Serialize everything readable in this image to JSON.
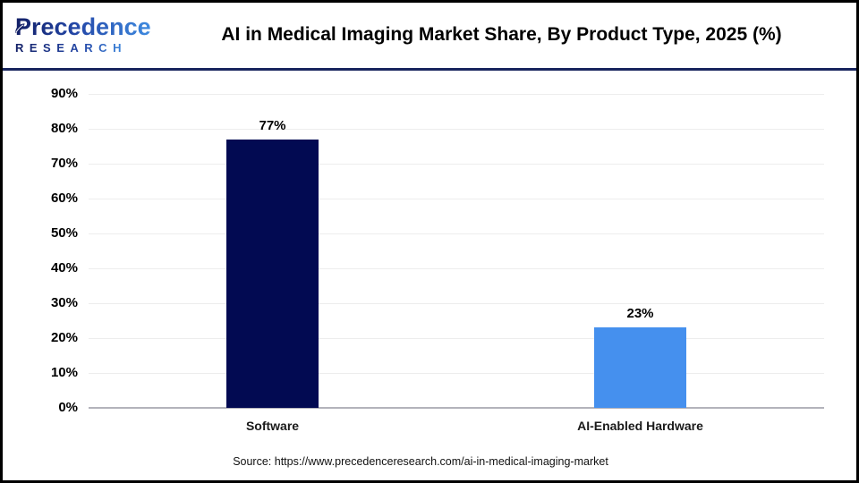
{
  "header": {
    "title": "AI in Medical Imaging Market Share, By Product Type, 2025 (%)"
  },
  "logo": {
    "name": "Precedence",
    "subname": "RESEARCH",
    "color_dark": "#121f66",
    "color_light": "#3f8be0"
  },
  "chart_data": {
    "type": "bar",
    "title": "AI in Medical Imaging Market Share, By Product Type, 2025 (%)",
    "categories": [
      "Software",
      "AI-Enabled Hardware"
    ],
    "values": [
      77,
      23
    ],
    "value_labels": [
      "77%",
      "23%"
    ],
    "bar_colors": [
      "#020a52",
      "#4590ee"
    ],
    "xlabel": "",
    "ylabel": "",
    "ylim": [
      0,
      90
    ],
    "yticks": [
      90,
      80,
      70,
      60,
      50,
      40,
      30,
      20,
      10,
      0
    ],
    "ytick_suffix": "%",
    "grid": true,
    "gridline_color": "#ededed",
    "axis_line_color": "#b3b3bb",
    "legend_position": "none"
  },
  "footer": {
    "source": "Source: https://www.precedenceresearch.com/ai-in-medical-imaging-market"
  }
}
